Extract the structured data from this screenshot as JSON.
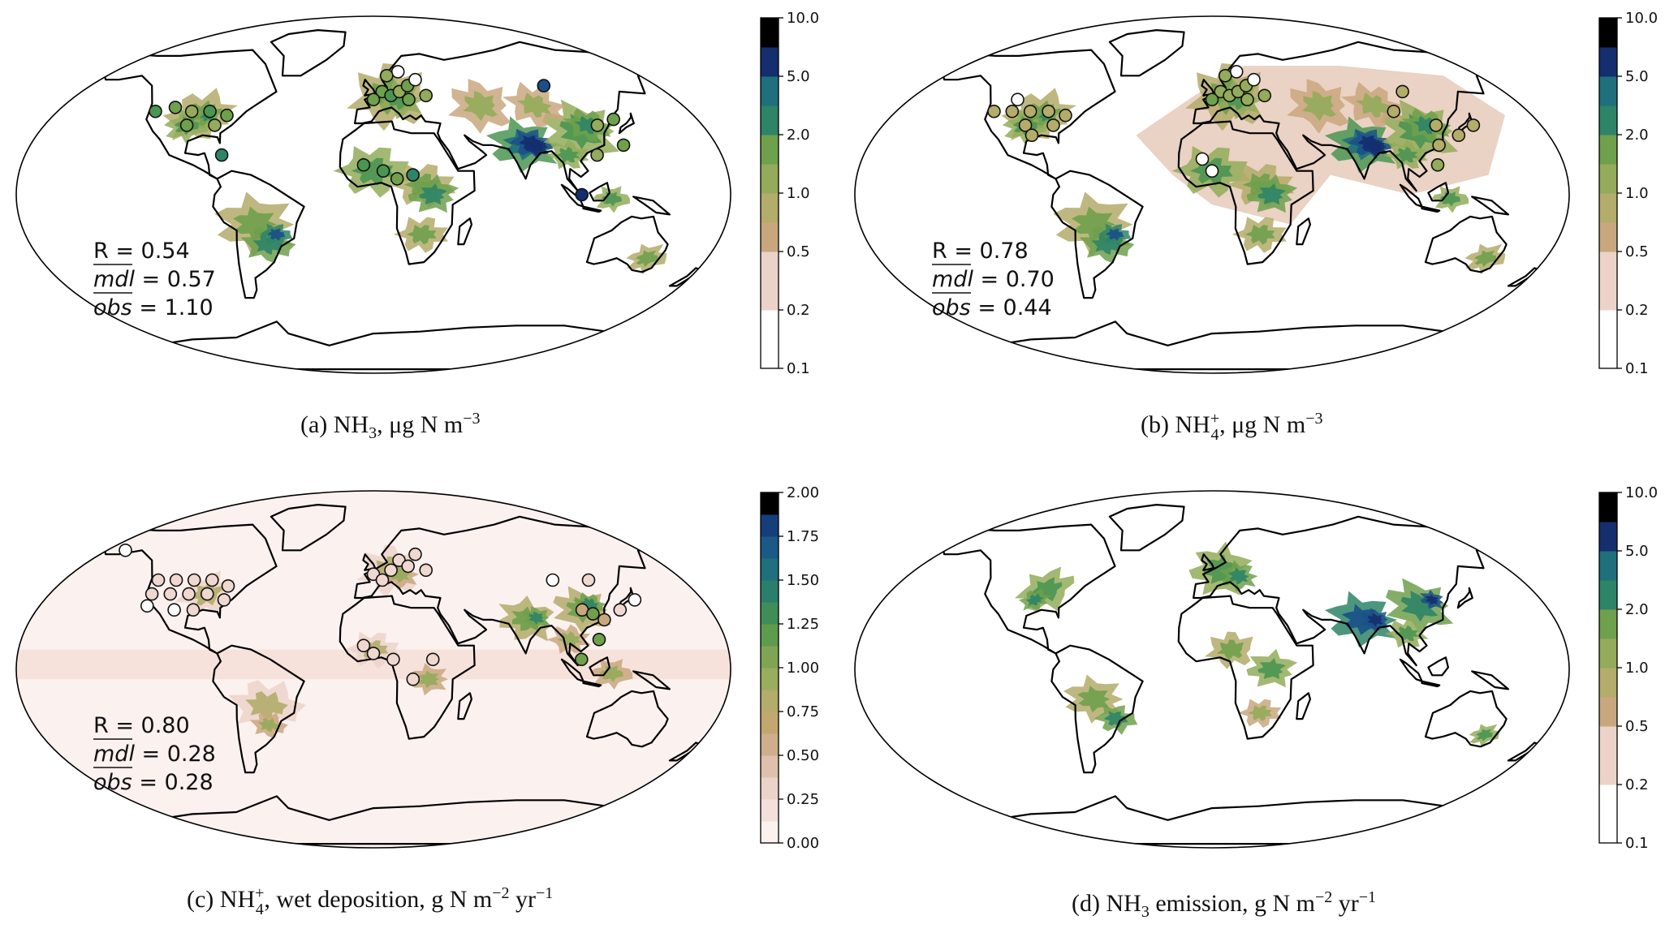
{
  "figure": {
    "panels": [
      {
        "id": "a",
        "caption_prefix": "(a) NH",
        "caption_sub": "3",
        "caption_sup": "",
        "caption_suffix": ", μg N m",
        "caption_exp": "−3",
        "caption_tail": "",
        "colorbar_ticks": [
          "10.0",
          "5.0",
          "2.0",
          "1.0",
          "0.5",
          "0.2",
          "0.1"
        ],
        "stats": {
          "r": "R = 0.54",
          "mdl_label": "mdl",
          "mdl_value": " = 0.57",
          "obs_label": "obs",
          "obs_value": " = 1.10"
        },
        "show_stations": true,
        "background": "#ffffff"
      },
      {
        "id": "b",
        "caption_prefix": "(b) NH",
        "caption_sub": "4",
        "caption_sup": "+",
        "caption_suffix": ", μg N m",
        "caption_exp": "−3",
        "caption_tail": "",
        "colorbar_ticks": [
          "10.0",
          "5.0",
          "2.0",
          "1.0",
          "0.5",
          "0.2",
          "0.1"
        ],
        "stats": {
          "r": "R = 0.78",
          "mdl_label": "mdl",
          "mdl_value": " = 0.70",
          "obs_label": "obs",
          "obs_value": " = 0.44"
        },
        "show_stations": true,
        "background": "#ffffff"
      },
      {
        "id": "c",
        "caption_prefix": "(c) NH",
        "caption_sub": "4",
        "caption_sup": "+",
        "caption_suffix": ", wet deposition, g N m",
        "caption_exp": "−2",
        "caption_tail": " yr",
        "caption_tail_exp": "−1",
        "colorbar_ticks": [
          "2.00",
          "1.75",
          "1.50",
          "1.25",
          "1.00",
          "0.75",
          "0.50",
          "0.25",
          "0.00"
        ],
        "stats": {
          "r": "R = 0.80",
          "mdl_label": "mdl",
          "mdl_value": " = 0.28",
          "obs_label": "obs",
          "obs_value": " = 0.28"
        },
        "show_stations": true,
        "background": "#fbf1ef"
      },
      {
        "id": "d",
        "caption_prefix": "(d) NH",
        "caption_sub": "3",
        "caption_sup": "",
        "caption_suffix": " emission, g N m",
        "caption_exp": "−2",
        "caption_tail": " yr",
        "caption_tail_exp": "−1",
        "colorbar_ticks": [
          "10.0",
          "5.0",
          "2.0",
          "1.0",
          "0.5",
          "0.2",
          "0.1"
        ],
        "stats": null,
        "show_stations": false,
        "background": "#ffffff"
      }
    ],
    "colormap": [
      "#ffffff",
      "#ecd3c9",
      "#c9a77e",
      "#b3ac6a",
      "#93ab5a",
      "#6fa04c",
      "#4b9552",
      "#2e8467",
      "#1f6f7c",
      "#1b4f8a",
      "#142e6e",
      "#000000"
    ]
  }
}
